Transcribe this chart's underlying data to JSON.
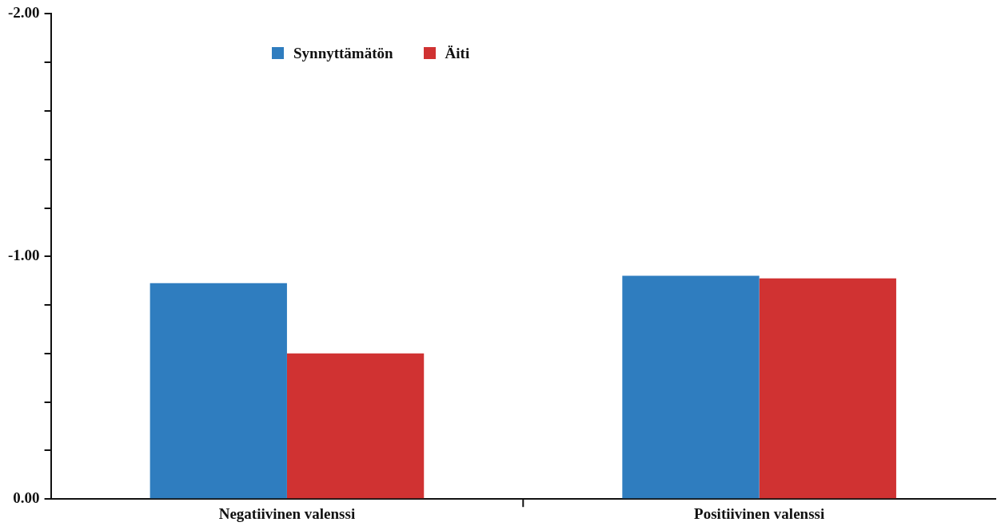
{
  "chart_data": {
    "type": "bar",
    "categories": [
      "Negatiivinen valenssi",
      "Positiivinen valenssi"
    ],
    "series": [
      {
        "name": "Synnyttämätön",
        "color": "#2f7dbf",
        "values": [
          -0.89,
          -0.92
        ]
      },
      {
        "name": "Äiti",
        "color": "#d03232",
        "values": [
          -0.6,
          -0.91
        ]
      }
    ],
    "ylim": [
      0,
      -2
    ],
    "yticks": [
      {
        "value": 0,
        "label": "0.00"
      },
      {
        "value": -0.2,
        "label": null
      },
      {
        "value": -0.4,
        "label": null
      },
      {
        "value": -0.6,
        "label": null
      },
      {
        "value": -0.8,
        "label": null
      },
      {
        "value": -1,
        "label": "-1.00"
      },
      {
        "value": -1.2,
        "label": null
      },
      {
        "value": -1.4,
        "label": null
      },
      {
        "value": -1.6,
        "label": null
      },
      {
        "value": -1.8,
        "label": null
      },
      {
        "value": -2,
        "label": "-2.00"
      }
    ],
    "grid": false,
    "legend": "top left"
  }
}
